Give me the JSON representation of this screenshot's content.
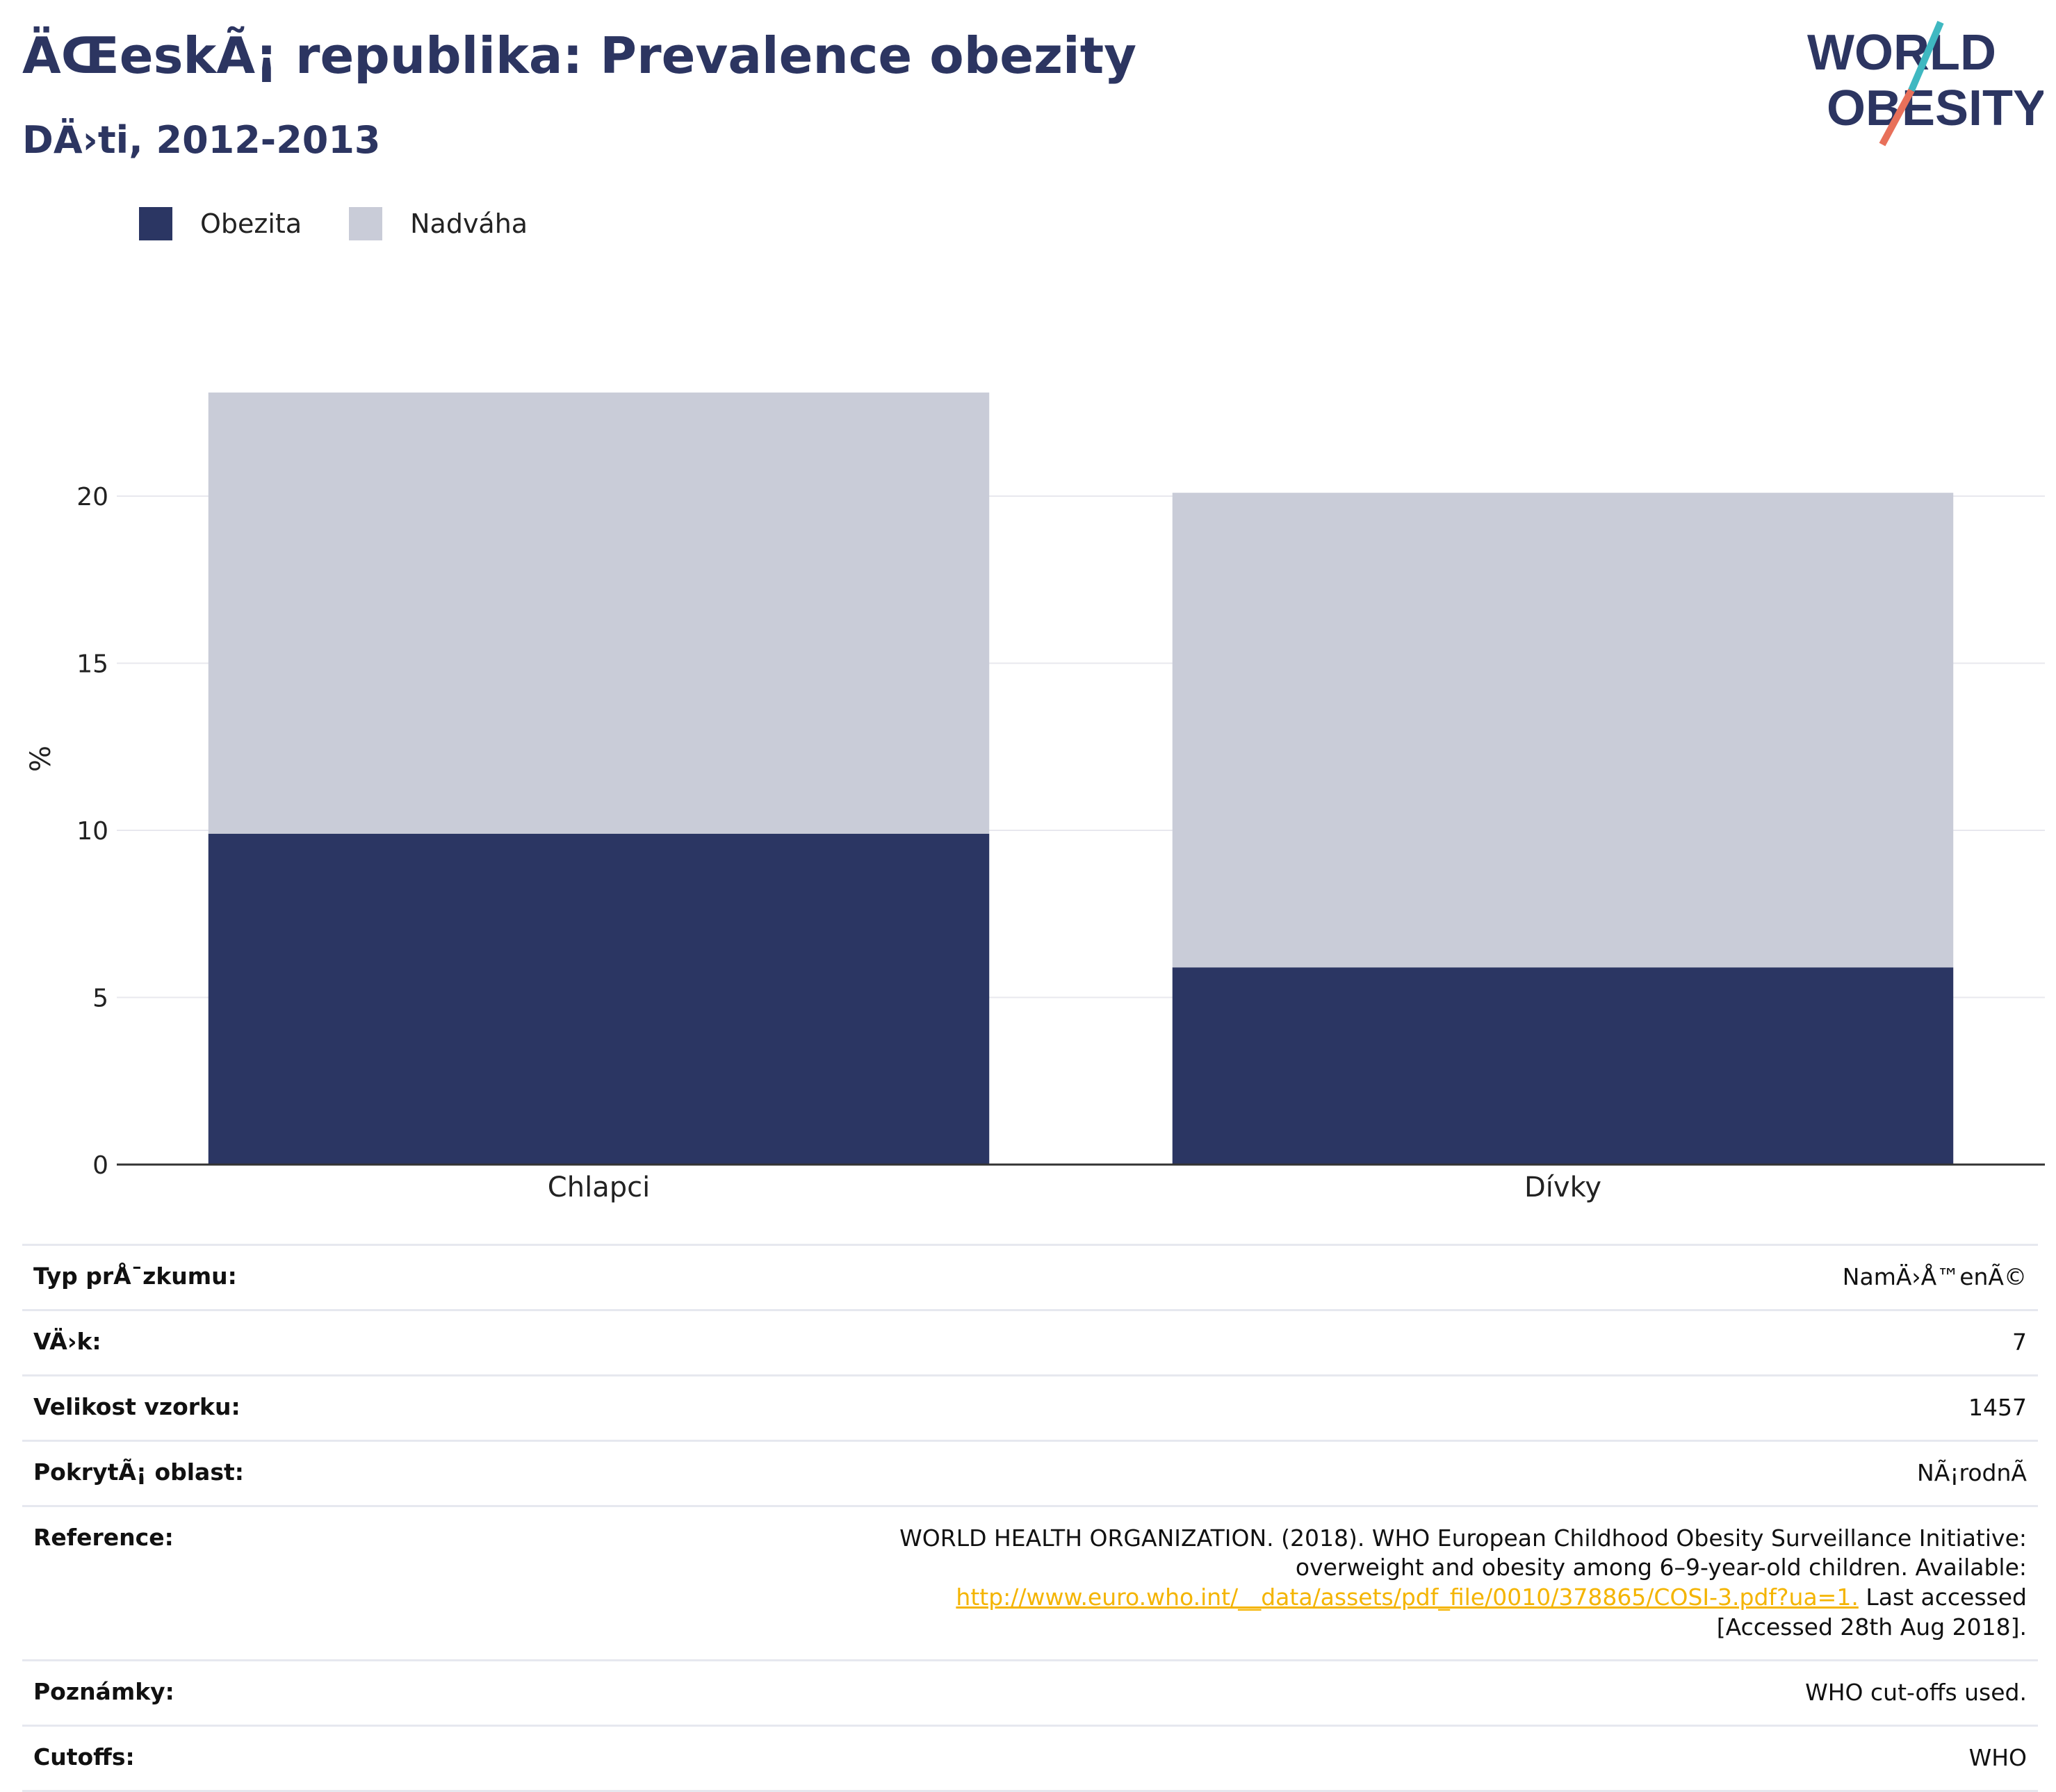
{
  "header": {
    "title": "ÄŒeskÃ¡ republika: Prevalence obezity",
    "subtitle": "DÄ›ti, 2012-2013"
  },
  "logo": {
    "line1": "WORLD",
    "line2": "OBESITY",
    "colors": {
      "text": "#2c3561",
      "slash_top": "#3fb8c1",
      "slash_bottom": "#e8705a"
    }
  },
  "colors": {
    "obesity": "#2b3663",
    "overweight": "#c9ccd8",
    "grid": "#e8e8ee",
    "axis": "#333333"
  },
  "chart_data": {
    "type": "bar",
    "stacked": true,
    "categories": [
      "Chlapci",
      "Dívky"
    ],
    "series": [
      {
        "name": "Obezita",
        "values": [
          9.9,
          5.9
        ]
      },
      {
        "name": "Nadváha",
        "values": [
          13.2,
          14.2
        ]
      }
    ],
    "ylabel": "%",
    "ylim": [
      0,
      25
    ],
    "yticks": [
      0,
      5,
      10,
      15,
      20
    ],
    "grid": true,
    "legend": "top-left"
  },
  "info": {
    "survey_type_label": "Typ prÅ¯zkumu:",
    "survey_type_value": "NamÄ›Å™enÃ©",
    "age_label": "VÄ›k:",
    "age_value": "7",
    "sample_label": "Velikost vzorku:",
    "sample_value": "1457",
    "area_label": "PokrytÃ¡ oblast:",
    "area_value": "NÃ¡rodnÃ",
    "reference_label": "Reference:",
    "reference_text_1": "WORLD HEALTH ORGANIZATION. (2018). WHO European Childhood Obesity Surveillance Initiative: overweight and obesity among 6–9-year-old children. Available: ",
    "reference_link": "http://www.euro.who.int/__data/assets/pdf_file/0010/378865/COSI-3.pdf?ua=1.",
    "reference_text_2": " Last accessed [Accessed 28th Aug 2018].",
    "notes_label": "Poznámky:",
    "notes_value": "WHO cut-offs used.",
    "cutoffs_label": "Cutoffs:",
    "cutoffs_value": "WHO"
  }
}
